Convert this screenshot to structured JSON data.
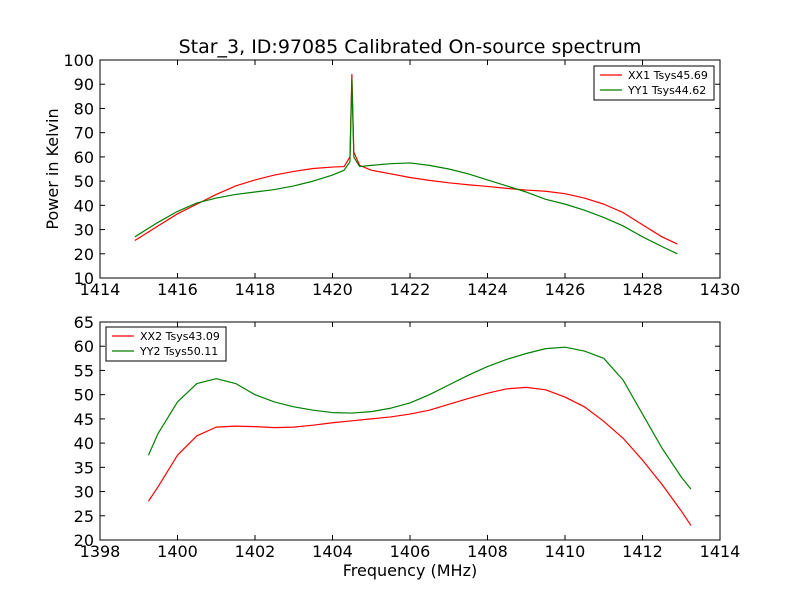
{
  "figure": {
    "title": "Star_3, ID:97085 Calibrated On-source spectrum",
    "ylabel": "Power in Kelvin",
    "xlabel": "Frequency (MHz)"
  },
  "colors": {
    "red": "#ff0000",
    "green": "#008000"
  },
  "chart_data": [
    {
      "type": "line",
      "title": "Star_3, ID:97085 Calibrated On-source spectrum",
      "ylabel": "Power in Kelvin",
      "xlabel": "",
      "xlim": [
        1414,
        1430
      ],
      "ylim": [
        10,
        100
      ],
      "xticks": [
        1414,
        1416,
        1418,
        1420,
        1422,
        1424,
        1426,
        1428,
        1430
      ],
      "yticks": [
        10,
        20,
        30,
        40,
        50,
        60,
        70,
        80,
        90,
        100
      ],
      "grid": false,
      "legend_position": "upper right",
      "series": [
        {
          "name": "XX1 Tsys45.69",
          "color": "red",
          "x": [
            1414.9,
            1415.5,
            1416.0,
            1416.5,
            1417.0,
            1417.5,
            1418.0,
            1418.5,
            1419.0,
            1419.5,
            1420.0,
            1420.3,
            1420.45,
            1420.5,
            1420.55,
            1420.7,
            1421.0,
            1421.5,
            1422.0,
            1422.5,
            1423.0,
            1423.5,
            1424.0,
            1424.5,
            1425.0,
            1425.5,
            1426.0,
            1426.5,
            1427.0,
            1427.5,
            1428.0,
            1428.5,
            1428.9
          ],
          "y": [
            25.5,
            31.5,
            36.5,
            40.5,
            44.5,
            48.0,
            50.5,
            52.5,
            54.0,
            55.2,
            55.8,
            56.0,
            60.0,
            94.0,
            62.0,
            56.5,
            54.5,
            53.0,
            51.5,
            50.3,
            49.3,
            48.5,
            47.8,
            47.0,
            46.3,
            45.8,
            44.8,
            43.0,
            40.5,
            37.0,
            32.0,
            27.0,
            24.0
          ]
        },
        {
          "name": "YY1 Tsys44.62",
          "color": "green",
          "x": [
            1414.9,
            1415.5,
            1416.0,
            1416.5,
            1417.0,
            1417.5,
            1418.0,
            1418.5,
            1419.0,
            1419.5,
            1420.0,
            1420.3,
            1420.45,
            1420.5,
            1420.55,
            1420.7,
            1421.0,
            1421.5,
            1422.0,
            1422.5,
            1423.0,
            1423.5,
            1424.0,
            1424.5,
            1425.0,
            1425.5,
            1426.0,
            1426.5,
            1427.0,
            1427.5,
            1428.0,
            1428.5,
            1428.9
          ],
          "y": [
            27.0,
            33.0,
            37.5,
            41.0,
            43.0,
            44.5,
            45.5,
            46.5,
            48.0,
            50.0,
            52.5,
            54.5,
            58.0,
            92.0,
            60.0,
            56.0,
            56.5,
            57.2,
            57.5,
            56.5,
            55.0,
            53.0,
            50.5,
            48.0,
            45.5,
            42.5,
            40.5,
            38.0,
            35.0,
            31.5,
            27.0,
            23.0,
            20.0
          ]
        }
      ]
    },
    {
      "type": "line",
      "title": "",
      "ylabel": "",
      "xlabel": "Frequency (MHz)",
      "xlim": [
        1398,
        1414
      ],
      "ylim": [
        20,
        65
      ],
      "xticks": [
        1398,
        1400,
        1402,
        1404,
        1406,
        1408,
        1410,
        1412,
        1414
      ],
      "yticks": [
        20,
        25,
        30,
        35,
        40,
        45,
        50,
        55,
        60,
        65
      ],
      "grid": false,
      "legend_position": "upper left",
      "series": [
        {
          "name": "XX2 Tsys43.09",
          "color": "red",
          "x": [
            1399.25,
            1399.5,
            1400.0,
            1400.5,
            1401.0,
            1401.5,
            1402.0,
            1402.5,
            1403.0,
            1403.5,
            1404.0,
            1404.5,
            1405.0,
            1405.5,
            1406.0,
            1406.5,
            1407.0,
            1407.5,
            1408.0,
            1408.5,
            1409.0,
            1409.5,
            1410.0,
            1410.5,
            1411.0,
            1411.5,
            1412.0,
            1412.5,
            1413.0,
            1413.25
          ],
          "y": [
            28.0,
            31.0,
            37.5,
            41.5,
            43.3,
            43.5,
            43.4,
            43.2,
            43.3,
            43.7,
            44.2,
            44.6,
            45.0,
            45.4,
            46.0,
            46.8,
            48.0,
            49.2,
            50.3,
            51.2,
            51.5,
            51.0,
            49.5,
            47.5,
            44.5,
            41.0,
            36.5,
            31.5,
            26.0,
            23.0
          ]
        },
        {
          "name": "YY2 Tsys50.11",
          "color": "green",
          "x": [
            1399.25,
            1399.5,
            1400.0,
            1400.5,
            1401.0,
            1401.5,
            1402.0,
            1402.5,
            1403.0,
            1403.5,
            1404.0,
            1404.5,
            1405.0,
            1405.5,
            1406.0,
            1406.5,
            1407.0,
            1407.5,
            1408.0,
            1408.5,
            1409.0,
            1409.5,
            1410.0,
            1410.5,
            1411.0,
            1411.5,
            1412.0,
            1412.5,
            1413.0,
            1413.25
          ],
          "y": [
            37.5,
            42.0,
            48.5,
            52.3,
            53.3,
            52.3,
            50.0,
            48.5,
            47.5,
            46.8,
            46.3,
            46.2,
            46.5,
            47.2,
            48.3,
            50.0,
            52.0,
            54.0,
            55.8,
            57.3,
            58.5,
            59.5,
            59.8,
            59.0,
            57.5,
            53.0,
            46.0,
            39.0,
            33.0,
            30.5
          ]
        }
      ]
    }
  ]
}
